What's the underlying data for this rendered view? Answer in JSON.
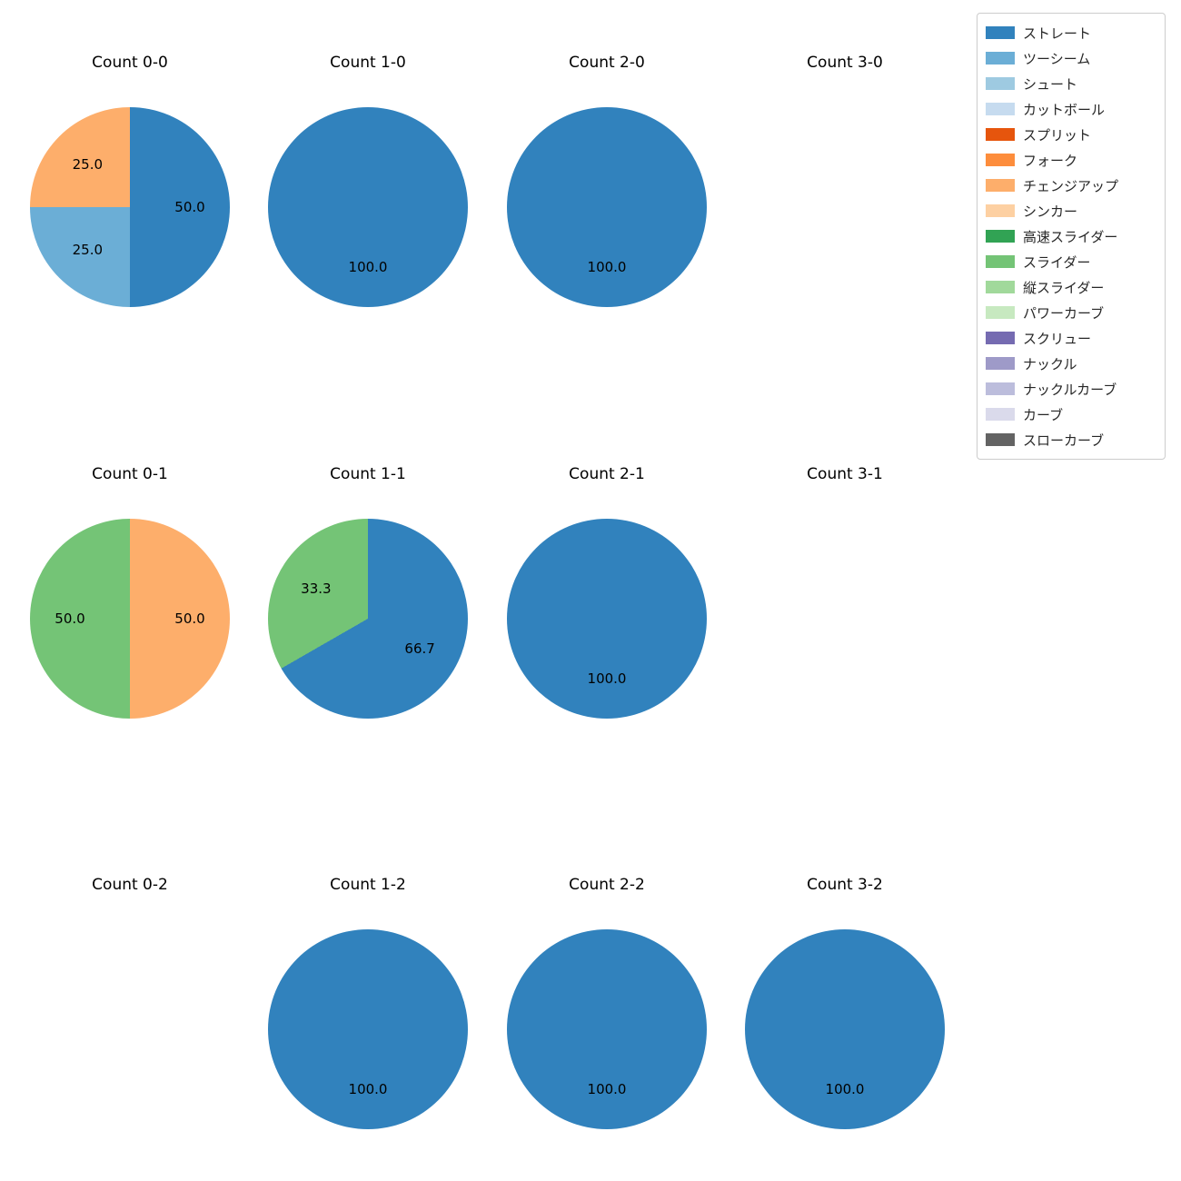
{
  "figure": {
    "background": "#ffffff",
    "text_color": "#000000"
  },
  "legend": {
    "items": [
      {
        "label": "ストレート",
        "color": "#3182bd"
      },
      {
        "label": "ツーシーム",
        "color": "#6baed6"
      },
      {
        "label": "シュート",
        "color": "#9ecae1"
      },
      {
        "label": "カットボール",
        "color": "#c6dbef"
      },
      {
        "label": "スプリット",
        "color": "#e6550d"
      },
      {
        "label": "フォーク",
        "color": "#fd8d3c"
      },
      {
        "label": "チェンジアップ",
        "color": "#fdae6b"
      },
      {
        "label": "シンカー",
        "color": "#fdd0a2"
      },
      {
        "label": "高速スライダー",
        "color": "#31a354"
      },
      {
        "label": "スライダー",
        "color": "#74c476"
      },
      {
        "label": "縦スライダー",
        "color": "#a1d99b"
      },
      {
        "label": "パワーカーブ",
        "color": "#c7e9c0"
      },
      {
        "label": "スクリュー",
        "color": "#756bb1"
      },
      {
        "label": "ナックル",
        "color": "#9e9ac8"
      },
      {
        "label": "ナックルカーブ",
        "color": "#bcbddc"
      },
      {
        "label": "カーブ",
        "color": "#dadaeb"
      },
      {
        "label": "スローカーブ",
        "color": "#636363"
      }
    ]
  },
  "chart_data": [
    {
      "type": "pie",
      "title": "Count 0-0",
      "start_angle": "top",
      "direction": "clockwise",
      "slices": [
        {
          "label": "ストレート",
          "value": 50.0,
          "color": "#3182bd"
        },
        {
          "label": "ツーシーム",
          "value": 25.0,
          "color": "#6baed6"
        },
        {
          "label": "チェンジアップ",
          "value": 25.0,
          "color": "#fdae6b"
        }
      ]
    },
    {
      "type": "pie",
      "title": "Count 1-0",
      "start_angle": "top",
      "direction": "clockwise",
      "slices": [
        {
          "label": "ストレート",
          "value": 100.0,
          "color": "#3182bd"
        }
      ]
    },
    {
      "type": "pie",
      "title": "Count 2-0",
      "start_angle": "top",
      "direction": "clockwise",
      "slices": [
        {
          "label": "ストレート",
          "value": 100.0,
          "color": "#3182bd"
        }
      ]
    },
    {
      "type": "pie",
      "title": "Count 3-0",
      "start_angle": "top",
      "direction": "clockwise",
      "slices": []
    },
    {
      "type": "pie",
      "title": "Count 0-1",
      "start_angle": "top",
      "direction": "clockwise",
      "slices": [
        {
          "label": "チェンジアップ",
          "value": 50.0,
          "color": "#fdae6b"
        },
        {
          "label": "スライダー",
          "value": 50.0,
          "color": "#74c476"
        }
      ]
    },
    {
      "type": "pie",
      "title": "Count 1-1",
      "start_angle": "top",
      "direction": "clockwise",
      "slices": [
        {
          "label": "ストレート",
          "value": 66.7,
          "color": "#3182bd"
        },
        {
          "label": "スライダー",
          "value": 33.3,
          "color": "#74c476"
        }
      ]
    },
    {
      "type": "pie",
      "title": "Count 2-1",
      "start_angle": "top",
      "direction": "clockwise",
      "slices": [
        {
          "label": "ストレート",
          "value": 100.0,
          "color": "#3182bd"
        }
      ]
    },
    {
      "type": "pie",
      "title": "Count 3-1",
      "start_angle": "top",
      "direction": "clockwise",
      "slices": []
    },
    {
      "type": "pie",
      "title": "Count 0-2",
      "start_angle": "top",
      "direction": "clockwise",
      "slices": []
    },
    {
      "type": "pie",
      "title": "Count 1-2",
      "start_angle": "top",
      "direction": "clockwise",
      "slices": [
        {
          "label": "ストレート",
          "value": 100.0,
          "color": "#3182bd"
        }
      ]
    },
    {
      "type": "pie",
      "title": "Count 2-2",
      "start_angle": "top",
      "direction": "clockwise",
      "slices": [
        {
          "label": "ストレート",
          "value": 100.0,
          "color": "#3182bd"
        }
      ]
    },
    {
      "type": "pie",
      "title": "Count 3-2",
      "start_angle": "top",
      "direction": "clockwise",
      "slices": [
        {
          "label": "ストレート",
          "value": 100.0,
          "color": "#3182bd"
        }
      ]
    }
  ]
}
